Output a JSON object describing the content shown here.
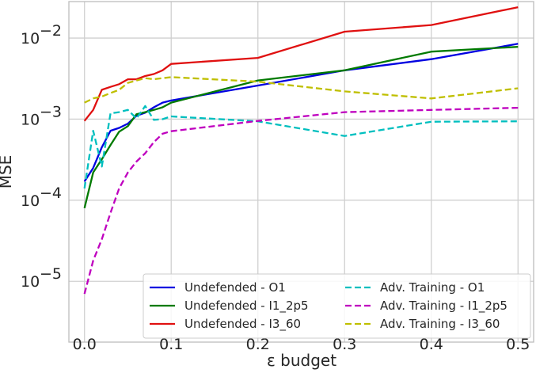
{
  "chart_data": {
    "type": "line",
    "title": "",
    "xlabel": "ε budget",
    "ylabel": "MSE",
    "yscale": "log",
    "xlim": [
      -0.018,
      0.518
    ],
    "ylim_exp": [
      -5.75,
      -1.55
    ],
    "xticks": [
      0.0,
      0.1,
      0.2,
      0.3,
      0.4,
      0.5
    ],
    "xtick_labels": [
      "0.0",
      "0.1",
      "0.2",
      "0.3",
      "0.4",
      "0.5"
    ],
    "ytick_exps": [
      -5,
      -4,
      -3,
      -2
    ],
    "ytick_labels": [
      {
        "base": "10",
        "exp": "−5"
      },
      {
        "base": "10",
        "exp": "−4"
      },
      {
        "base": "10",
        "exp": "−3"
      },
      {
        "base": "10",
        "exp": "−2"
      }
    ],
    "grid": true,
    "legend": {
      "position": "lower-right",
      "columns": 2
    },
    "series": [
      {
        "name": "Undefended - O1",
        "color": "#0000e0",
        "dash": "solid",
        "x": [
          0,
          0.01,
          0.02,
          0.03,
          0.04,
          0.05,
          0.06,
          0.07,
          0.08,
          0.09,
          0.1,
          0.2,
          0.3,
          0.4,
          0.5
        ],
        "y": [
          0.00017,
          0.00025,
          0.00045,
          0.00072,
          0.00078,
          0.00088,
          0.0011,
          0.0012,
          0.0014,
          0.0016,
          0.0017,
          0.0026,
          0.004,
          0.0055,
          0.0085
        ]
      },
      {
        "name": "Undefended - I1_2p5",
        "color": "#007a00",
        "dash": "solid",
        "x": [
          0,
          0.01,
          0.02,
          0.03,
          0.04,
          0.05,
          0.06,
          0.07,
          0.08,
          0.09,
          0.1,
          0.2,
          0.3,
          0.4,
          0.5
        ],
        "y": [
          8e-05,
          0.00022,
          0.00032,
          0.00048,
          0.0007,
          0.00082,
          0.00115,
          0.00122,
          0.0013,
          0.0014,
          0.0016,
          0.003,
          0.004,
          0.0068,
          0.0078
        ]
      },
      {
        "name": "Undefended - I3_60",
        "color": "#e01010",
        "dash": "solid",
        "x": [
          0,
          0.01,
          0.02,
          0.03,
          0.04,
          0.05,
          0.06,
          0.07,
          0.08,
          0.09,
          0.1,
          0.2,
          0.3,
          0.4,
          0.5
        ],
        "y": [
          0.00095,
          0.0013,
          0.0023,
          0.0025,
          0.0027,
          0.0031,
          0.0031,
          0.0034,
          0.0036,
          0.004,
          0.0048,
          0.0057,
          0.012,
          0.0145,
          0.024
        ]
      },
      {
        "name": "Adv. Training - O1",
        "color": "#00bfbf",
        "dash": "dashed",
        "x": [
          0,
          0.01,
          0.02,
          0.03,
          0.04,
          0.05,
          0.06,
          0.07,
          0.08,
          0.09,
          0.1,
          0.2,
          0.3,
          0.4,
          0.5
        ],
        "y": [
          0.00014,
          0.00072,
          0.00026,
          0.00118,
          0.00122,
          0.0013,
          0.00102,
          0.00145,
          0.00098,
          0.001,
          0.00108,
          0.00094,
          0.00062,
          0.00093,
          0.00094
        ]
      },
      {
        "name": "Adv. Training - I1_2p5",
        "color": "#bf00bf",
        "dash": "dashed",
        "x": [
          0,
          0.01,
          0.02,
          0.03,
          0.04,
          0.05,
          0.06,
          0.07,
          0.08,
          0.09,
          0.1,
          0.2,
          0.3,
          0.4,
          0.5
        ],
        "y": [
          7e-06,
          1.8e-05,
          3.3e-05,
          7e-05,
          0.00014,
          0.00022,
          0.0003,
          0.00038,
          0.00052,
          0.00066,
          0.00071,
          0.00095,
          0.00122,
          0.0013,
          0.00138
        ]
      },
      {
        "name": "Adv. Training - I3_60",
        "color": "#bfbf00",
        "dash": "dashed",
        "x": [
          0,
          0.01,
          0.02,
          0.03,
          0.04,
          0.05,
          0.06,
          0.07,
          0.08,
          0.09,
          0.1,
          0.2,
          0.3,
          0.4,
          0.5
        ],
        "y": [
          0.0016,
          0.0018,
          0.0019,
          0.0021,
          0.0023,
          0.0028,
          0.003,
          0.0032,
          0.0031,
          0.0032,
          0.0033,
          0.0029,
          0.0022,
          0.0018,
          0.0024
        ]
      }
    ]
  }
}
